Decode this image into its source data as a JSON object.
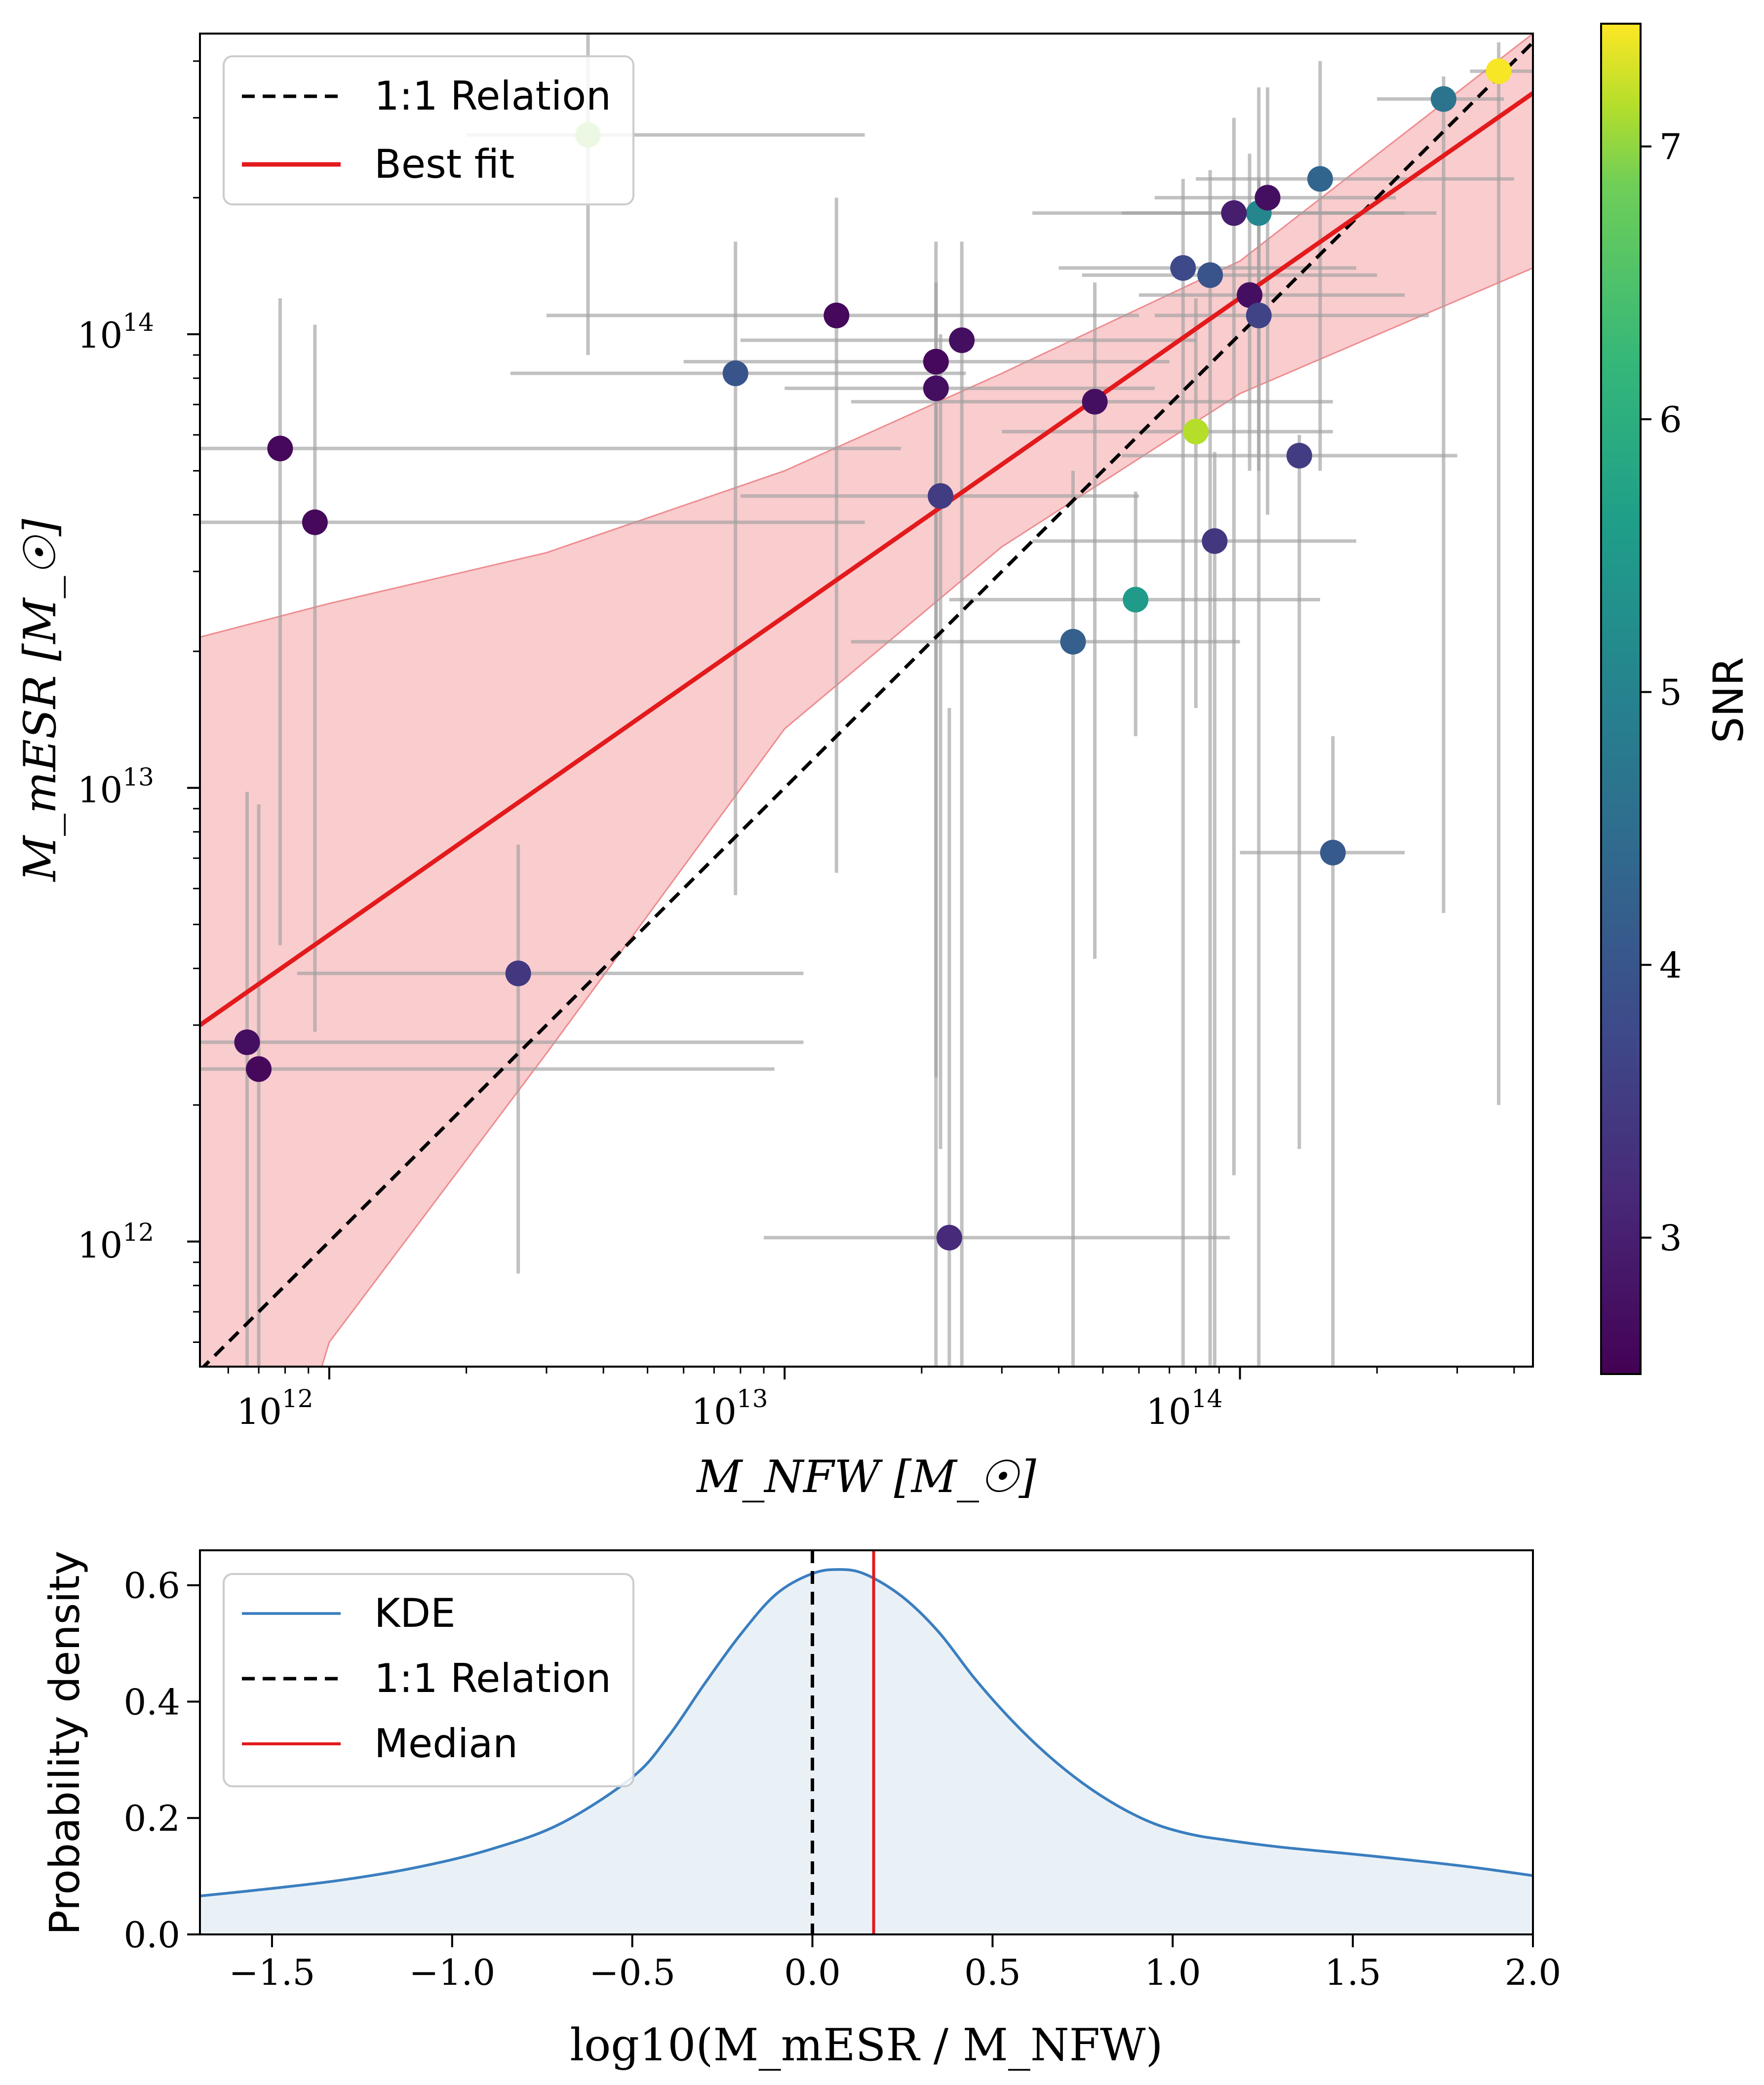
{
  "chart_data": [
    {
      "type": "scatter",
      "scale": "log-log",
      "xlabel": "M_NFW [M_☉]",
      "ylabel": "M_mESR [M_☉]",
      "xlim": [
        520000000000.0,
        440000000000000.0
      ],
      "ylim": [
        530000000000.0,
        460000000000000.0
      ],
      "x_ticks": [
        {
          "value": 1000000000000.0,
          "base": "10",
          "exp": "12"
        },
        {
          "value": 10000000000000.0,
          "base": "10",
          "exp": "13"
        },
        {
          "value": 100000000000000.0,
          "base": "10",
          "exp": "14"
        }
      ],
      "y_ticks": [
        {
          "value": 1000000000000.0,
          "base": "10",
          "exp": "12"
        },
        {
          "value": 10000000000000.0,
          "base": "10",
          "exp": "13"
        },
        {
          "value": 100000000000000.0,
          "base": "10",
          "exp": "14"
        }
      ],
      "legend": [
        {
          "label": "1:1 Relation",
          "style": "dashed",
          "color": "#000000"
        },
        {
          "label": "Best fit",
          "style": "solid",
          "color": "#e31a1c"
        }
      ],
      "one_to_one": {
        "from": 520000000000.0,
        "to": 460000000000000.0
      },
      "best_fit": {
        "x": [
          520000000000.0,
          440000000000000.0
        ],
        "y": [
          3000000000000.0,
          340000000000000.0
        ]
      },
      "band": {
        "x": [
          520000000000.0,
          1000000000000.0,
          3000000000000.0,
          10000000000000.0,
          30000000000000.0,
          100000000000000.0,
          440000000000000.0
        ],
        "upper": [
          21500000000000.0,
          25500000000000.0,
          33000000000000.0,
          50000000000000.0,
          82000000000000.0,
          145000000000000.0,
          460000000000000.0
        ],
        "lower": [
          70000000000.0,
          600000000000.0,
          2600000000000.0,
          13500000000000.0,
          34000000000000.0,
          74000000000000.0,
          140000000000000.0
        ]
      },
      "colorbar": {
        "label": "SNR",
        "range": [
          2.5,
          7.45
        ],
        "ticks": [
          3,
          4,
          5,
          6,
          7
        ],
        "colormap": "viridis"
      },
      "points": [
        {
          "x": 3700000000000.0,
          "y": 275000000000000.0,
          "snr": 6.5,
          "xerr": [
            2000000000000.0,
            15000000000000.0
          ],
          "yerr": [
            90000000000000.0,
            500000000000000.0
          ]
        },
        {
          "x": 370000000000000.0,
          "y": 380000000000000.0,
          "snr": 7.4,
          "xerr": [
            320000000000000.0,
            440000000000000.0
          ],
          "yerr": [
            2000000000000.0,
            440000000000000.0
          ]
        },
        {
          "x": 280000000000000.0,
          "y": 330000000000000.0,
          "snr": 4.4,
          "xerr": [
            200000000000000.0,
            380000000000000.0
          ],
          "yerr": [
            5300000000000.0,
            370000000000000.0
          ]
        },
        {
          "x": 150000000000000.0,
          "y": 220000000000000.0,
          "snr": 4.1,
          "xerr": [
            80000000000000.0,
            400000000000000.0
          ],
          "yerr": [
            50000000000000.0,
            400000000000000.0
          ]
        },
        {
          "x": 110000000000000.0,
          "y": 185000000000000.0,
          "snr": 4.8,
          "xerr": [
            55000000000000.0,
            270000000000000.0
          ],
          "yerr": [
            50000000000000.0,
            350000000000000.0
          ]
        },
        {
          "x": 115000000000000.0,
          "y": 200000000000000.0,
          "snr": 2.7,
          "xerr": [
            65000000000000.0,
            220000000000000.0
          ],
          "yerr": [
            40000000000000.0,
            350000000000000.0
          ]
        },
        {
          "x": 97000000000000.0,
          "y": 185000000000000.0,
          "snr": 2.9,
          "xerr": [
            35000000000000.0,
            230000000000000.0
          ],
          "yerr": [
            1400000000000.0,
            300000000000000.0
          ]
        },
        {
          "x": 75000000000000.0,
          "y": 140000000000000.0,
          "snr": 3.6,
          "xerr": [
            40000000000000.0,
            180000000000000.0
          ],
          "yerr": [
            530000000000.0,
            220000000000000.0
          ]
        },
        {
          "x": 86000000000000.0,
          "y": 135000000000000.0,
          "snr": 3.8,
          "xerr": [
            45000000000000.0,
            200000000000000.0
          ],
          "yerr": [
            530000000000.0,
            230000000000000.0
          ]
        },
        {
          "x": 105000000000000.0,
          "y": 122000000000000.0,
          "snr": 2.7,
          "xerr": [
            60000000000000.0,
            230000000000000.0
          ],
          "yerr": [
            50000000000000.0,
            250000000000000.0
          ]
        },
        {
          "x": 110000000000000.0,
          "y": 110000000000000.0,
          "snr": 3.5,
          "xerr": [
            65000000000000.0,
            260000000000000.0
          ],
          "yerr": [
            530000000000.0,
            220000000000000.0
          ]
        },
        {
          "x": 13000000000000.0,
          "y": 110000000000000.0,
          "snr": 2.6,
          "xerr": [
            3000000000000.0,
            60000000000000.0
          ],
          "yerr": [
            6500000000000.0,
            200000000000000.0
          ]
        },
        {
          "x": 24500000000000.0,
          "y": 97000000000000.0,
          "snr": 2.7,
          "xerr": [
            8000000000000.0,
            80000000000000.0
          ],
          "yerr": [
            530000000000.0,
            160000000000000.0
          ]
        },
        {
          "x": 21500000000000.0,
          "y": 87000000000000.0,
          "snr": 2.6,
          "xerr": [
            6000000000000.0,
            70000000000000.0
          ],
          "yerr": [
            530000000000.0,
            160000000000000.0
          ]
        },
        {
          "x": 7800000000000.0,
          "y": 82000000000000.0,
          "snr": 3.8,
          "xerr": [
            2500000000000.0,
            25000000000000.0
          ],
          "yerr": [
            5800000000000.0,
            160000000000000.0
          ]
        },
        {
          "x": 21500000000000.0,
          "y": 76000000000000.0,
          "snr": 2.7,
          "xerr": [
            10000000000000.0,
            65000000000000.0
          ],
          "yerr": [
            2300000000000.0,
            130000000000000.0
          ]
        },
        {
          "x": 48000000000000.0,
          "y": 71000000000000.0,
          "snr": 2.7,
          "xerr": [
            14000000000000.0,
            160000000000000.0
          ],
          "yerr": [
            4200000000000.0,
            130000000000000.0
          ]
        },
        {
          "x": 80000000000000.0,
          "y": 61000000000000.0,
          "snr": 6.9,
          "xerr": [
            30000000000000.0,
            160000000000000.0
          ],
          "yerr": [
            15000000000000.0,
            120000000000000.0
          ]
        },
        {
          "x": 135000000000000.0,
          "y": 54000000000000.0,
          "snr": 3.4,
          "xerr": [
            55000000000000.0,
            300000000000000.0
          ],
          "yerr": [
            1600000000000.0,
            60000000000000.0
          ]
        },
        {
          "x": 22000000000000.0,
          "y": 44000000000000.0,
          "snr": 3.4,
          "xerr": [
            8000000000000.0,
            60000000000000.0
          ],
          "yerr": [
            1600000000000.0,
            100000000000000.0
          ]
        },
        {
          "x": 88000000000000.0,
          "y": 35000000000000.0,
          "snr": 3.3,
          "xerr": [
            35000000000000.0,
            180000000000000.0
          ],
          "yerr": [
            530000000000.0,
            55000000000000.0
          ]
        },
        {
          "x": 59000000000000.0,
          "y": 26000000000000.0,
          "snr": 5.2,
          "xerr": [
            23000000000000.0,
            150000000000000.0
          ],
          "yerr": [
            13000000000000.0,
            45000000000000.0
          ]
        },
        {
          "x": 43000000000000.0,
          "y": 21000000000000.0,
          "snr": 4.0,
          "xerr": [
            14000000000000.0,
            100000000000000.0
          ],
          "yerr": [
            530000000000.0,
            50000000000000.0
          ]
        },
        {
          "x": 160000000000000.0,
          "y": 7200000000000.0,
          "snr": 3.9,
          "xerr": [
            100000000000000.0,
            230000000000000.0
          ],
          "yerr": [
            530000000000.0,
            13000000000000.0
          ]
        },
        {
          "x": 780000000000.0,
          "y": 56000000000000.0,
          "snr": 2.6,
          "xerr": [
            520000000000.0,
            18000000000000.0
          ],
          "yerr": [
            4500000000000.0,
            120000000000000.0
          ]
        },
        {
          "x": 930000000000.0,
          "y": 38500000000000.0,
          "snr": 2.6,
          "xerr": [
            520000000000.0,
            15000000000000.0
          ],
          "yerr": [
            2900000000000.0,
            105000000000000.0
          ]
        },
        {
          "x": 2600000000000.0,
          "y": 3900000000000.0,
          "snr": 3.3,
          "xerr": [
            850000000000.0,
            11000000000000.0
          ],
          "yerr": [
            850000000000.0,
            7500000000000.0
          ]
        },
        {
          "x": 660000000000.0,
          "y": 2750000000000.0,
          "snr": 2.7,
          "xerr": [
            520000000000.0,
            11000000000000.0
          ],
          "yerr": [
            530000000000.0,
            9800000000000.0
          ]
        },
        {
          "x": 700000000000.0,
          "y": 2400000000000.0,
          "snr": 2.6,
          "xerr": [
            520000000000.0,
            9500000000000.0
          ],
          "yerr": [
            530000000000.0,
            9200000000000.0
          ]
        },
        {
          "x": 23000000000000.0,
          "y": 1020000000000.0,
          "snr": 3.1,
          "xerr": [
            9000000000000.0,
            95000000000000.0
          ],
          "yerr": [
            530000000000.0,
            15000000000000.0
          ]
        }
      ]
    },
    {
      "type": "area",
      "xlabel": "log10(M_mESR / M_NFW)",
      "ylabel": "Probability density",
      "xlim": [
        -1.7,
        2.0
      ],
      "ylim": [
        0.0,
        0.66
      ],
      "x_ticks": [
        "−1.5",
        "−1.0",
        "−0.5",
        "0.0",
        "0.5",
        "1.0",
        "1.5",
        "2.0"
      ],
      "x_tick_values": [
        -1.5,
        -1.0,
        -0.5,
        0.0,
        0.5,
        1.0,
        1.5,
        2.0
      ],
      "y_ticks": [
        "0.0",
        "0.2",
        "0.4",
        "0.6"
      ],
      "y_tick_values": [
        0.0,
        0.2,
        0.4,
        0.6
      ],
      "kde": {
        "x": [
          -1.7,
          -1.5,
          -1.3,
          -1.1,
          -0.9,
          -0.7,
          -0.5,
          -0.4,
          -0.3,
          -0.2,
          -0.1,
          0.0,
          0.08,
          0.15,
          0.25,
          0.35,
          0.45,
          0.55,
          0.65,
          0.75,
          0.85,
          0.95,
          1.05,
          1.15,
          1.3,
          1.5,
          1.7,
          1.85,
          2.0
        ],
        "y": [
          0.066,
          0.079,
          0.094,
          0.115,
          0.145,
          0.19,
          0.27,
          0.34,
          0.43,
          0.515,
          0.585,
          0.62,
          0.627,
          0.618,
          0.58,
          0.52,
          0.44,
          0.37,
          0.31,
          0.26,
          0.22,
          0.19,
          0.172,
          0.162,
          0.15,
          0.138,
          0.125,
          0.114,
          0.101
        ]
      },
      "one_to_one_x": 0.0,
      "median_x": 0.17,
      "legend": [
        {
          "label": "KDE",
          "style": "solid",
          "color": "#3a7ebf"
        },
        {
          "label": "1:1 Relation",
          "style": "dashed",
          "color": "#000000"
        },
        {
          "label": "Median",
          "style": "solid",
          "color": "#e31a1c"
        }
      ]
    }
  ]
}
